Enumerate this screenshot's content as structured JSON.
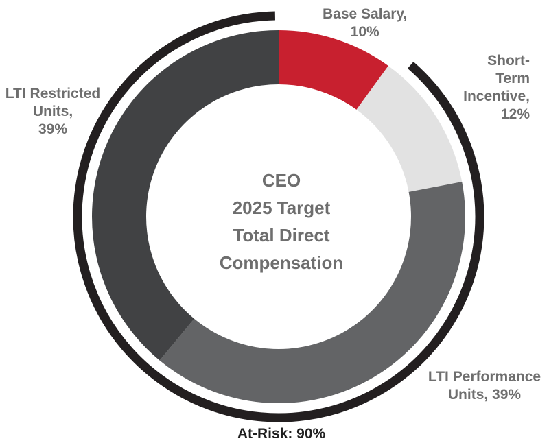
{
  "chart_data": {
    "type": "pie",
    "title_lines": [
      "CEO",
      "2025 Target",
      "Total Direct",
      "Compensation"
    ],
    "slices": [
      {
        "label_lines": [
          "Base Salary,",
          "10%"
        ],
        "value": 10,
        "color": "#c8202f"
      },
      {
        "label_lines": [
          "Short-",
          "Term",
          "Incentive,",
          "12%"
        ],
        "value": 12,
        "color": "#e2e2e2"
      },
      {
        "label_lines": [
          "LTI Performance",
          "Units, 39%"
        ],
        "value": 39,
        "color": "#636466"
      },
      {
        "label_lines": [
          "LTI Restricted",
          "Units,",
          "39%"
        ],
        "value": 39,
        "color": "#414244"
      }
    ],
    "bracket": {
      "label": "At-Risk: 90%",
      "value": 90,
      "color": "#231f20"
    }
  }
}
